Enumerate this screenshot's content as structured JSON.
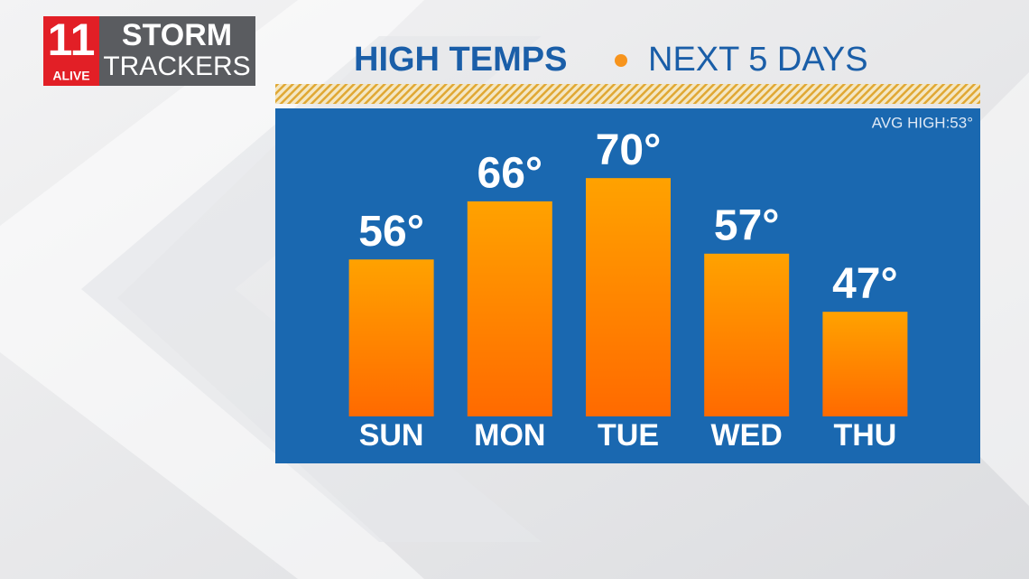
{
  "logo": {
    "number": "11",
    "station": "ALIVE",
    "line1": "STORM",
    "line2": "TRACKERS"
  },
  "chart_data": {
    "type": "bar",
    "title": "HIGH TEMPS",
    "subtitle": "NEXT 5 DAYS",
    "annotation": "AVG HIGH:53°",
    "categories": [
      "SUN",
      "MON",
      "TUE",
      "WED",
      "THU"
    ],
    "values": [
      56,
      66,
      70,
      57,
      47
    ],
    "value_labels": [
      "56°",
      "66°",
      "70°",
      "57°",
      "47°"
    ],
    "color": [
      "#ffa200",
      "#ff6a00"
    ],
    "ylim": [
      29,
      75
    ]
  }
}
